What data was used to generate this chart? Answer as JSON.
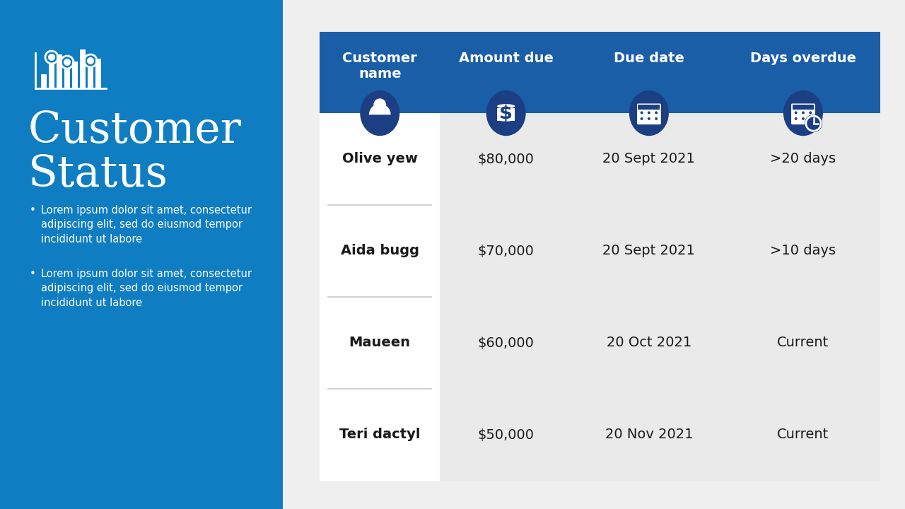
{
  "left_bg_color": "#0F7DC2",
  "right_bg_color": "#EFEFEF",
  "white_color": "#FFFFFF",
  "header_bg_color": "#1B5EA8",
  "icon_circle_color": "#1B3F82",
  "col1_bg": "#FFFFFF",
  "row_right_bg": "#EAEAEA",
  "divider_color": "#C8C8C8",
  "text_dark": "#1a1a1a",
  "text_normal": "#333333",
  "title": "Customer\nStatus",
  "bullet_text": [
    "Lorem ipsum dolor sit amet, consectetur\nadipiscing elit, sed do eiusmod tempor\nincididunt ut labore",
    "Lorem ipsum dolor sit amet, consectetur\nadipiscing elit, sed do eiusmod tempor\nincididunt ut labore"
  ],
  "columns": [
    "Customer\nname",
    "Amount due",
    "Due date",
    "Days overdue"
  ],
  "rows": [
    [
      "Olive yew",
      "$80,000",
      "20 Sept 2021",
      ">20 days"
    ],
    [
      "Aida bugg",
      "$70,000",
      "20 Sept 2021",
      ">10 days"
    ],
    [
      "Maueen",
      "$60,000",
      "20 Oct 2021",
      "Current"
    ],
    [
      "Teri dactyl",
      "$50,000",
      "20 Nov 2021",
      "Current"
    ]
  ]
}
